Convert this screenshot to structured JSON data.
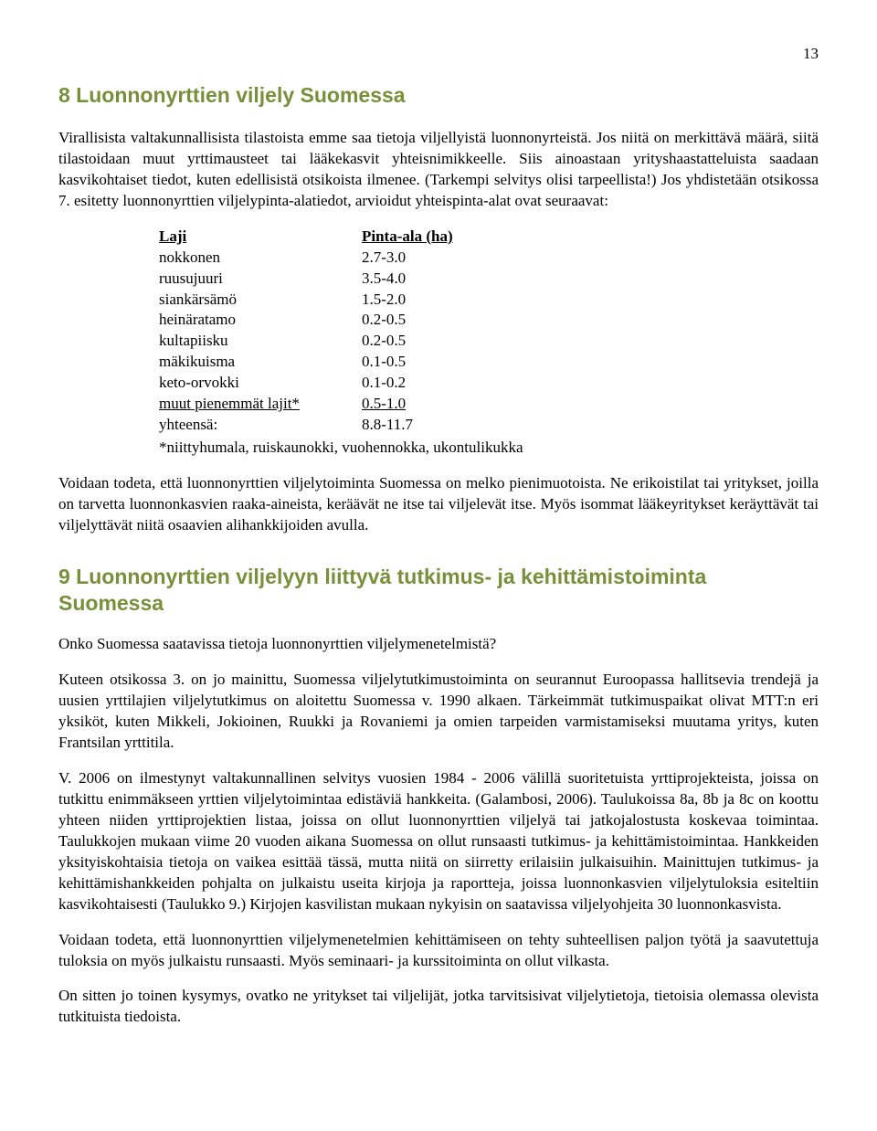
{
  "page_number": "13",
  "section8": {
    "title": "8 Luonnonyrttien viljely Suomessa",
    "para1": "Virallisista valtakunnallisista tilastoista emme saa tietoja viljellyistä luonnonyrteistä. Jos niitä on merkittävä määrä, siitä tilastoidaan muut yrttimausteet tai lääkekasvit yhteisnimikkeelle. Siis ainoastaan yrityshaastatteluista saadaan kasvikohtaiset tiedot, kuten edellisistä otsikoista ilmenee. (Tarkempi selvitys olisi tarpeellista!) Jos yhdistetään otsikossa 7. esitetty luonnonyrttien viljelypinta-alatiedot, arvioidut yhteispinta-alat ovat seuraavat:",
    "table": {
      "head_laji": "Laji",
      "head_pinta": "Pinta-ala (ha)",
      "rows": [
        {
          "label": "nokkonen",
          "value": "2.7-3.0"
        },
        {
          "label": "ruusujuuri",
          "value": "3.5-4.0"
        },
        {
          "label": "siankärsämö",
          "value": "1.5-2.0"
        },
        {
          "label": "heinäratamo",
          "value": "0.2-0.5"
        },
        {
          "label": "kultapiisku",
          "value": "0.2-0.5"
        },
        {
          "label": "mäkikuisma",
          "value": "0.1-0.5"
        },
        {
          "label": "keto-orvokki",
          "value": "0.1-0.2"
        }
      ],
      "muut_label": "muut pienemmät lajit*",
      "muut_value": "0.5-1.0",
      "yht_label": "yhteensä:",
      "yht_value": "8.8-11.7",
      "note": "*niittyhumala, ruiskaunokki, vuohennokka, ukontulikukka"
    },
    "para2": "Voidaan todeta, että luonnonyrttien viljelytoiminta Suomessa on melko pienimuotoista. Ne erikoistilat tai yritykset, joilla on tarvetta luonnonkasvien raaka-aineista, keräävät ne itse tai viljelevät itse. Myös isommat lääkeyritykset keräyttävät tai viljelyttävät niitä osaavien alihankkijoiden avulla."
  },
  "section9": {
    "title_line1": "9 Luonnonyrttien viljelyyn liittyvä tutkimus- ja kehittämistoiminta",
    "title_line2": "Suomessa",
    "para1": "Onko Suomessa saatavissa tietoja luonnonyrttien viljelymenetelmistä?",
    "para2": "Kuteen otsikossa 3. on jo mainittu, Suomessa viljelytutkimustoiminta on seurannut Euroopassa hallitsevia trendejä ja uusien yrttilajien viljelytutkimus on aloitettu Suomessa v. 1990 alkaen. Tärkeimmät tutkimuspaikat olivat MTT:n eri yksiköt, kuten Mikkeli, Jokioinen, Ruukki ja Rovaniemi ja omien tarpeiden varmistamiseksi muutama yritys, kuten Frantsilan yrttitila.",
    "para3": "V. 2006 on ilmestynyt valtakunnallinen selvitys vuosien 1984 - 2006 välillä suoritetuista yrttiprojekteista, joissa on tutkittu enimmäkseen yrttien viljelytoimintaa edistäviä hankkeita. (Galambosi, 2006). Taulukoissa 8a, 8b ja 8c on koottu yhteen niiden yrttiprojektien listaa, joissa on ollut luonnonyrttien viljelyä tai jatkojalostusta koskevaa toimintaa. Taulukkojen mukaan viime 20 vuoden aikana Suomessa on ollut runsaasti tutkimus- ja kehittämistoimintaa. Hankkeiden yksityiskohtaisia tietoja on vaikea esittää tässä, mutta niitä on siirretty erilaisiin julkaisuihin. Mainittujen tutkimus- ja kehittämishankkeiden pohjalta on julkaistu useita kirjoja ja raportteja, joissa luonnonkasvien viljelytuloksia esiteltiin kasvikohtaisesti (Taulukko 9.) Kirjojen kasvilistan mukaan nykyisin on saatavissa viljelyohjeita 30 luonnonkasvista.",
    "para4": "Voidaan todeta, että luonnonyrttien viljelymenetelmien kehittämiseen on tehty suhteellisen paljon työtä ja saavutettuja tuloksia on myös julkaistu runsaasti. Myös seminaari- ja kurssitoiminta on ollut vilkasta.",
    "para5": "On sitten jo toinen kysymys, ovatko ne yritykset tai viljelijät, jotka tarvitsisivat viljelytietoja, tietoisia olemassa olevista tutkituista tiedoista."
  }
}
